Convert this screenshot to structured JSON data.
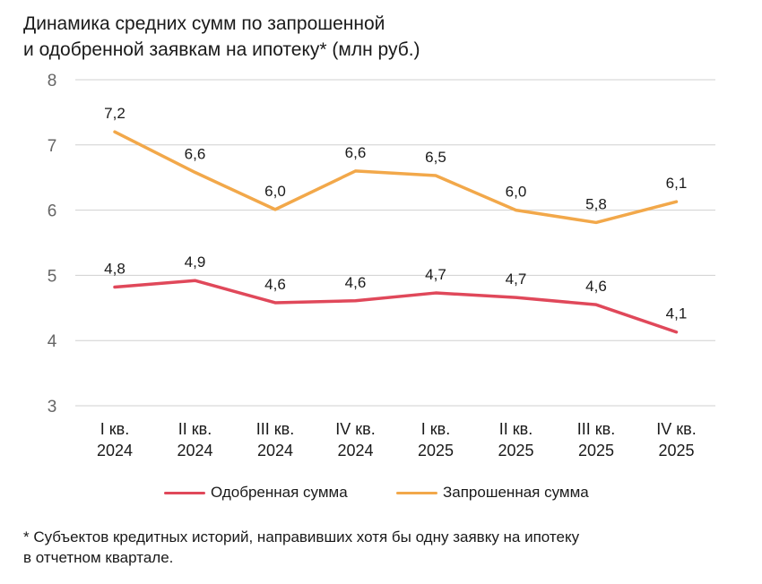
{
  "chart_data": {
    "type": "line",
    "title_lines": [
      "Динамика средних сумм по запрошенной",
      "и одобренной заявкам на ипотеку* (млн руб.)"
    ],
    "categories": [
      [
        "I кв.",
        "2024"
      ],
      [
        "II кв.",
        "2024"
      ],
      [
        "III кв.",
        "2024"
      ],
      [
        "IV кв.",
        "2024"
      ],
      [
        "I кв.",
        "2025"
      ],
      [
        "II кв.",
        "2025"
      ],
      [
        "III кв.",
        "2025"
      ],
      [
        "IV кв.",
        "2025"
      ]
    ],
    "y_ticks": [
      "3",
      "4",
      "5",
      "6",
      "7",
      "8"
    ],
    "ylim": [
      3,
      8
    ],
    "grid": true,
    "legend_position": "bottom",
    "series": [
      {
        "name": "Одобренная сумма",
        "color": "#e0485a",
        "values": [
          4.82,
          4.92,
          4.58,
          4.61,
          4.73,
          4.66,
          4.55,
          4.13
        ],
        "labels": [
          "4,8",
          "4,9",
          "4,6",
          "4,6",
          "4,7",
          "4,7",
          "4,6",
          "4,1"
        ]
      },
      {
        "name": "Запрошенная сумма",
        "color": "#f2a84a",
        "values": [
          7.2,
          6.58,
          6.01,
          6.6,
          6.53,
          6.0,
          5.81,
          6.13
        ],
        "labels": [
          "7,2",
          "6,6",
          "6,0",
          "6,6",
          "6,5",
          "6,0",
          "5,8",
          "6,1"
        ]
      }
    ]
  },
  "footnote_lines": [
    "* Субъектов кредитных историй, направивших хотя бы одну заявку на ипотеку",
    "в отчетном квартале."
  ],
  "colors": {
    "grid": "#d0d0d0",
    "axis_text": "#666666",
    "text": "#1a1a1a"
  }
}
